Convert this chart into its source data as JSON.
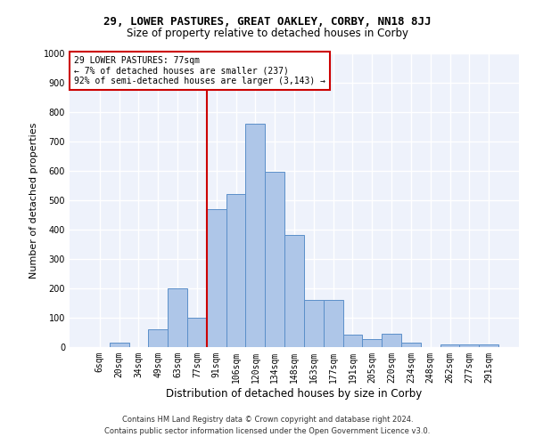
{
  "title1": "29, LOWER PASTURES, GREAT OAKLEY, CORBY, NN18 8JJ",
  "title2": "Size of property relative to detached houses in Corby",
  "xlabel": "Distribution of detached houses by size in Corby",
  "ylabel": "Number of detached properties",
  "footnote1": "Contains HM Land Registry data © Crown copyright and database right 2024.",
  "footnote2": "Contains public sector information licensed under the Open Government Licence v3.0.",
  "annotation_line1": "29 LOWER PASTURES: 77sqm",
  "annotation_line2": "← 7% of detached houses are smaller (237)",
  "annotation_line3": "92% of semi-detached houses are larger (3,143) →",
  "bar_labels": [
    "6sqm",
    "20sqm",
    "34sqm",
    "49sqm",
    "63sqm",
    "77sqm",
    "91sqm",
    "106sqm",
    "120sqm",
    "134sqm",
    "148sqm",
    "163sqm",
    "177sqm",
    "191sqm",
    "205sqm",
    "220sqm",
    "234sqm",
    "248sqm",
    "262sqm",
    "277sqm",
    "291sqm"
  ],
  "bar_values": [
    0,
    14,
    0,
    60,
    200,
    100,
    470,
    520,
    760,
    598,
    383,
    160,
    160,
    42,
    28,
    45,
    14,
    0,
    8,
    8,
    8
  ],
  "bar_color": "#aec6e8",
  "bar_edge_color": "#5b8fc9",
  "red_line_x": 5.5,
  "ylim": [
    0,
    1000
  ],
  "yticks": [
    0,
    100,
    200,
    300,
    400,
    500,
    600,
    700,
    800,
    900,
    1000
  ],
  "bg_color": "#eef2fb",
  "grid_color": "#ffffff",
  "red_color": "#cc0000",
  "title1_fontsize": 9,
  "title2_fontsize": 8.5,
  "ylabel_fontsize": 8,
  "xlabel_fontsize": 8.5,
  "tick_fontsize": 7,
  "annot_fontsize": 7,
  "footnote_fontsize": 6
}
